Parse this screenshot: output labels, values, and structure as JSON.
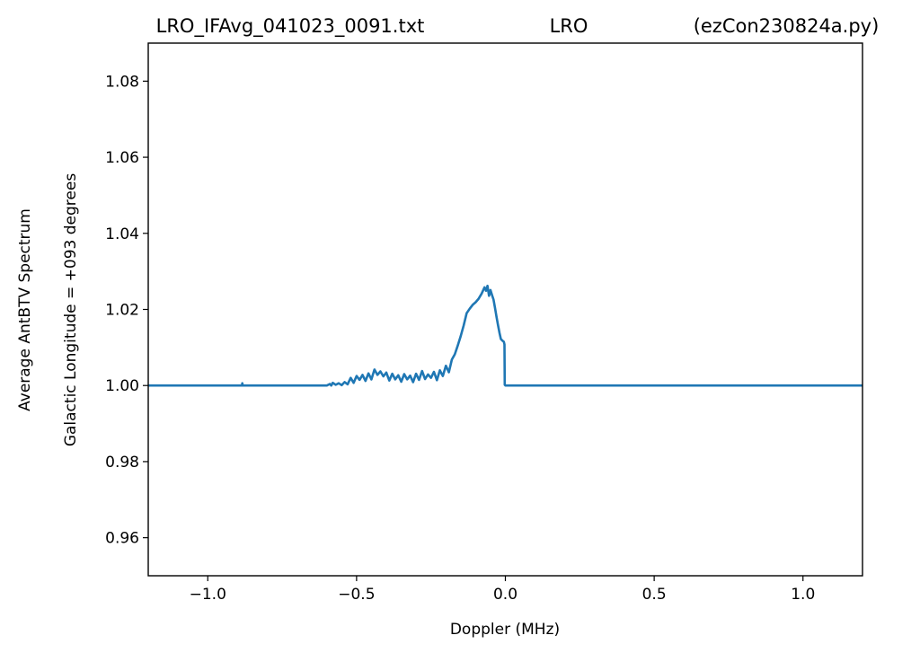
{
  "title": {
    "left": "LRO_IFAvg_041023_0091.txt",
    "center": "LRO",
    "right": "(ezCon230824a.py)"
  },
  "chart_data": {
    "type": "line",
    "xlabel": "Doppler (MHz)",
    "ylabel": [
      "Average AntBTV Spectrum",
      "Galactic Longitude = +093 degrees"
    ],
    "xlim": [
      -1.2,
      1.2
    ],
    "ylim": [
      0.95,
      1.09
    ],
    "xticks": [
      -1.0,
      -0.5,
      0.0,
      0.5,
      1.0
    ],
    "xtick_labels": [
      "−1.0",
      "−0.5",
      "0.0",
      "0.5",
      "1.0"
    ],
    "yticks": [
      0.96,
      0.98,
      1.0,
      1.02,
      1.04,
      1.06,
      1.08
    ],
    "ytick_labels": [
      "0.96",
      "0.98",
      "1.00",
      "1.02",
      "1.04",
      "1.06",
      "1.08"
    ],
    "grid": false,
    "series": [
      {
        "color": "#1f77b4",
        "x": [
          -1.2,
          -0.885,
          -0.884,
          -0.883,
          -0.88,
          -0.6,
          -0.59,
          -0.585,
          -0.58,
          -0.57,
          -0.56,
          -0.55,
          -0.54,
          -0.53,
          -0.52,
          -0.51,
          -0.5,
          -0.49,
          -0.48,
          -0.47,
          -0.46,
          -0.45,
          -0.44,
          -0.43,
          -0.42,
          -0.41,
          -0.4,
          -0.39,
          -0.38,
          -0.37,
          -0.36,
          -0.35,
          -0.34,
          -0.33,
          -0.32,
          -0.31,
          -0.3,
          -0.29,
          -0.28,
          -0.27,
          -0.26,
          -0.25,
          -0.24,
          -0.23,
          -0.22,
          -0.21,
          -0.2,
          -0.19,
          -0.18,
          -0.17,
          -0.16,
          -0.15,
          -0.14,
          -0.13,
          -0.12,
          -0.11,
          -0.1,
          -0.09,
          -0.08,
          -0.07,
          -0.065,
          -0.06,
          -0.055,
          -0.05,
          -0.045,
          -0.04,
          -0.035,
          -0.03,
          -0.025,
          -0.02,
          -0.015,
          -0.01,
          -0.005,
          -0.003,
          -0.002,
          0.0,
          0.5,
          1.2
        ],
        "y": [
          1.0,
          1.0,
          1.0006,
          1.0,
          1.0,
          1.0,
          1.0004,
          1.0,
          1.0007,
          1.0002,
          1.0006,
          1.0001,
          1.0009,
          1.0003,
          1.002,
          1.0007,
          1.0025,
          1.0015,
          1.0028,
          1.0012,
          1.0032,
          1.0016,
          1.0042,
          1.0028,
          1.0037,
          1.0024,
          1.0034,
          1.0013,
          1.0031,
          1.0016,
          1.0027,
          1.001,
          1.003,
          1.0016,
          1.0026,
          1.0009,
          1.0031,
          1.0015,
          1.0038,
          1.0017,
          1.0029,
          1.002,
          1.0036,
          1.0014,
          1.004,
          1.0025,
          1.0052,
          1.0035,
          1.0068,
          1.0082,
          1.0105,
          1.013,
          1.0158,
          1.019,
          1.0202,
          1.0212,
          1.0219,
          1.0228,
          1.0241,
          1.0258,
          1.0249,
          1.0262,
          1.0236,
          1.0251,
          1.0238,
          1.0226,
          1.0205,
          1.0181,
          1.016,
          1.0139,
          1.0122,
          1.0118,
          1.0115,
          1.0108,
          1.0002,
          1.0,
          1.0,
          1.0
        ]
      }
    ]
  }
}
